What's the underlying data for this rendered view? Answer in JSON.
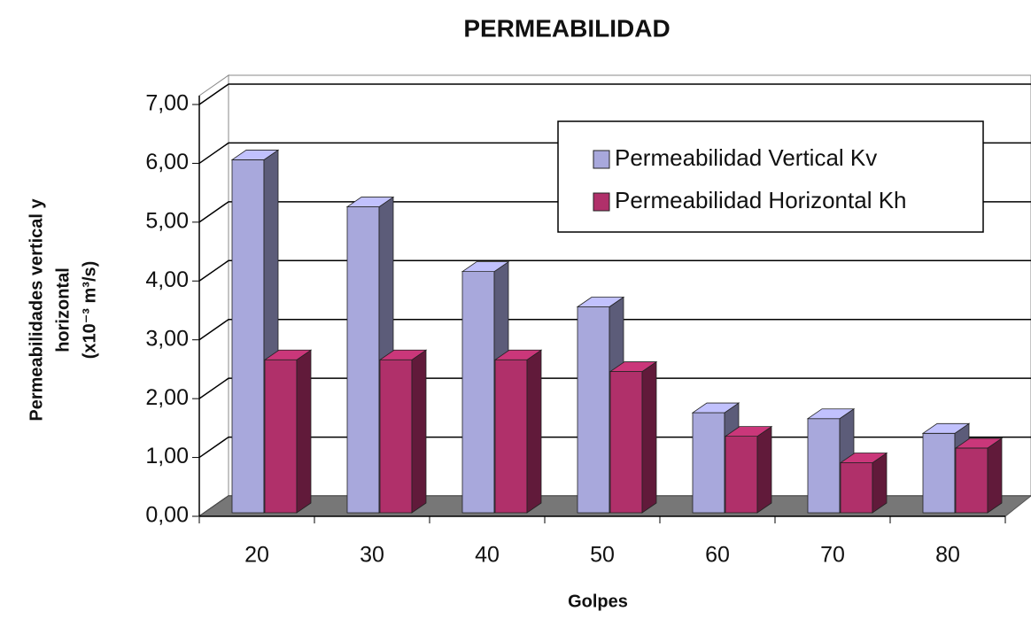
{
  "chart_data": {
    "type": "bar3d",
    "title": "PERMEABILIDAD",
    "x_label": "Golpes",
    "y_label": [
      "Permeabilidades vertical y",
      "horizontal",
      "(x10⁻³ m³/s)"
    ],
    "categories": [
      "20",
      "30",
      "40",
      "50",
      "60",
      "70",
      "80"
    ],
    "series": [
      {
        "name": "Permeabilidad Vertical Kv",
        "color": "#a8a8dc",
        "values": [
          6.0,
          5.2,
          4.1,
          3.5,
          1.7,
          1.6,
          1.35
        ]
      },
      {
        "name": "Permeabilidad Horizontal Kh",
        "color": "#b0306a",
        "values": [
          2.6,
          2.6,
          2.6,
          2.4,
          1.3,
          0.85,
          1.1
        ]
      }
    ],
    "ylim": [
      0,
      7
    ],
    "yticks": [
      {
        "value": 0,
        "label": "0,00"
      },
      {
        "value": 1,
        "label": "1,00"
      },
      {
        "value": 2,
        "label": "2,00"
      },
      {
        "value": 3,
        "label": "3,00"
      },
      {
        "value": 4,
        "label": "4,00"
      },
      {
        "value": 5,
        "label": "5,00"
      },
      {
        "value": 6,
        "label": "6,00"
      },
      {
        "value": 7,
        "label": "7,00"
      }
    ],
    "grid": true,
    "legend": "upper right"
  }
}
